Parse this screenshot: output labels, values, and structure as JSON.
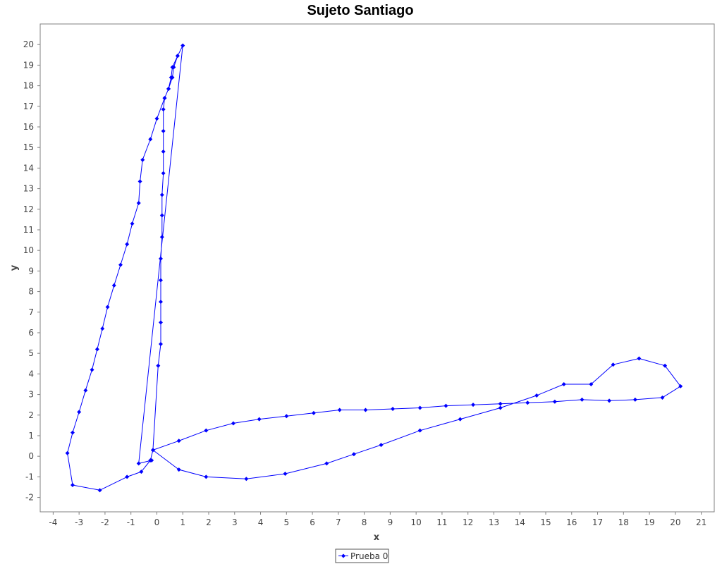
{
  "chart_data": {
    "type": "line",
    "title": "Sujeto Santiago",
    "xlabel": "x",
    "ylabel": "y",
    "xlim": [
      -4.5,
      21.5
    ],
    "ylim": [
      -2.7,
      21.0
    ],
    "x_ticks": [
      -4,
      -3,
      -2,
      -1,
      0,
      1,
      2,
      3,
      4,
      5,
      6,
      7,
      8,
      9,
      10,
      11,
      12,
      13,
      14,
      15,
      16,
      17,
      18,
      19,
      20,
      21
    ],
    "y_ticks": [
      -2,
      -1,
      0,
      1,
      2,
      3,
      4,
      5,
      6,
      7,
      8,
      9,
      10,
      11,
      12,
      13,
      14,
      15,
      16,
      17,
      18,
      19,
      20
    ],
    "grid": false,
    "legend_position": "bottom",
    "series": [
      {
        "name": "Prueba 0",
        "color": "#0000ff",
        "points": [
          [
            1.0,
            19.95
          ],
          [
            0.8,
            19.45
          ],
          [
            0.6,
            18.9
          ],
          [
            0.55,
            18.4
          ],
          [
            0.45,
            17.85
          ],
          [
            0.3,
            17.4
          ],
          [
            0.25,
            16.85
          ],
          [
            0.25,
            15.8
          ],
          [
            0.25,
            14.8
          ],
          [
            0.25,
            13.75
          ],
          [
            0.2,
            12.7
          ],
          [
            0.2,
            11.7
          ],
          [
            0.2,
            10.65
          ],
          [
            0.15,
            9.6
          ],
          [
            0.15,
            8.55
          ],
          [
            0.15,
            7.5
          ],
          [
            0.15,
            6.5
          ],
          [
            0.15,
            5.45
          ],
          [
            0.05,
            4.4
          ],
          [
            -0.15,
            0.3
          ],
          [
            0.85,
            0.75
          ],
          [
            1.9,
            1.25
          ],
          [
            2.95,
            1.6
          ],
          [
            3.95,
            1.8
          ],
          [
            5.0,
            1.95
          ],
          [
            6.05,
            2.1
          ],
          [
            7.05,
            2.25
          ],
          [
            8.05,
            2.25
          ],
          [
            9.1,
            2.3
          ],
          [
            10.15,
            2.35
          ],
          [
            11.15,
            2.45
          ],
          [
            12.2,
            2.5
          ],
          [
            13.25,
            2.55
          ],
          [
            14.3,
            2.6
          ],
          [
            15.35,
            2.65
          ],
          [
            16.4,
            2.75
          ],
          [
            17.45,
            2.7
          ],
          [
            18.45,
            2.75
          ],
          [
            19.5,
            2.85
          ],
          [
            20.2,
            3.4
          ],
          [
            19.6,
            4.4
          ],
          [
            18.6,
            4.75
          ],
          [
            17.6,
            4.45
          ],
          [
            16.75,
            3.5
          ],
          [
            15.7,
            3.5
          ],
          [
            14.65,
            2.95
          ],
          [
            13.25,
            2.35
          ],
          [
            11.7,
            1.8
          ],
          [
            10.15,
            1.25
          ],
          [
            8.65,
            0.55
          ],
          [
            7.6,
            0.1
          ],
          [
            6.55,
            -0.35
          ],
          [
            4.95,
            -0.85
          ],
          [
            3.45,
            -1.1
          ],
          [
            1.9,
            -1.0
          ],
          [
            0.85,
            -0.65
          ],
          [
            -0.15,
            0.3
          ],
          [
            -0.25,
            -0.2
          ],
          [
            -0.6,
            -0.75
          ],
          [
            -1.15,
            -1.0
          ],
          [
            -2.2,
            -1.65
          ],
          [
            -3.25,
            -1.4
          ],
          [
            -3.45,
            0.15
          ],
          [
            -3.25,
            1.15
          ],
          [
            -3.0,
            2.15
          ],
          [
            -2.75,
            3.2
          ],
          [
            -2.5,
            4.2
          ],
          [
            -2.3,
            5.2
          ],
          [
            -2.1,
            6.2
          ],
          [
            -1.9,
            7.25
          ],
          [
            -1.65,
            8.3
          ],
          [
            -1.4,
            9.3
          ],
          [
            -1.15,
            10.3
          ],
          [
            -0.95,
            11.3
          ],
          [
            -0.7,
            12.3
          ],
          [
            -0.65,
            13.35
          ],
          [
            -0.55,
            14.4
          ],
          [
            -0.25,
            15.4
          ],
          [
            0.0,
            16.4
          ],
          [
            0.3,
            17.4
          ],
          [
            0.45,
            17.85
          ],
          [
            0.6,
            18.4
          ],
          [
            0.65,
            18.9
          ],
          [
            0.8,
            19.45
          ],
          [
            1.0,
            19.95
          ],
          [
            -0.7,
            -0.35
          ],
          [
            -0.2,
            -0.2
          ]
        ]
      }
    ]
  }
}
